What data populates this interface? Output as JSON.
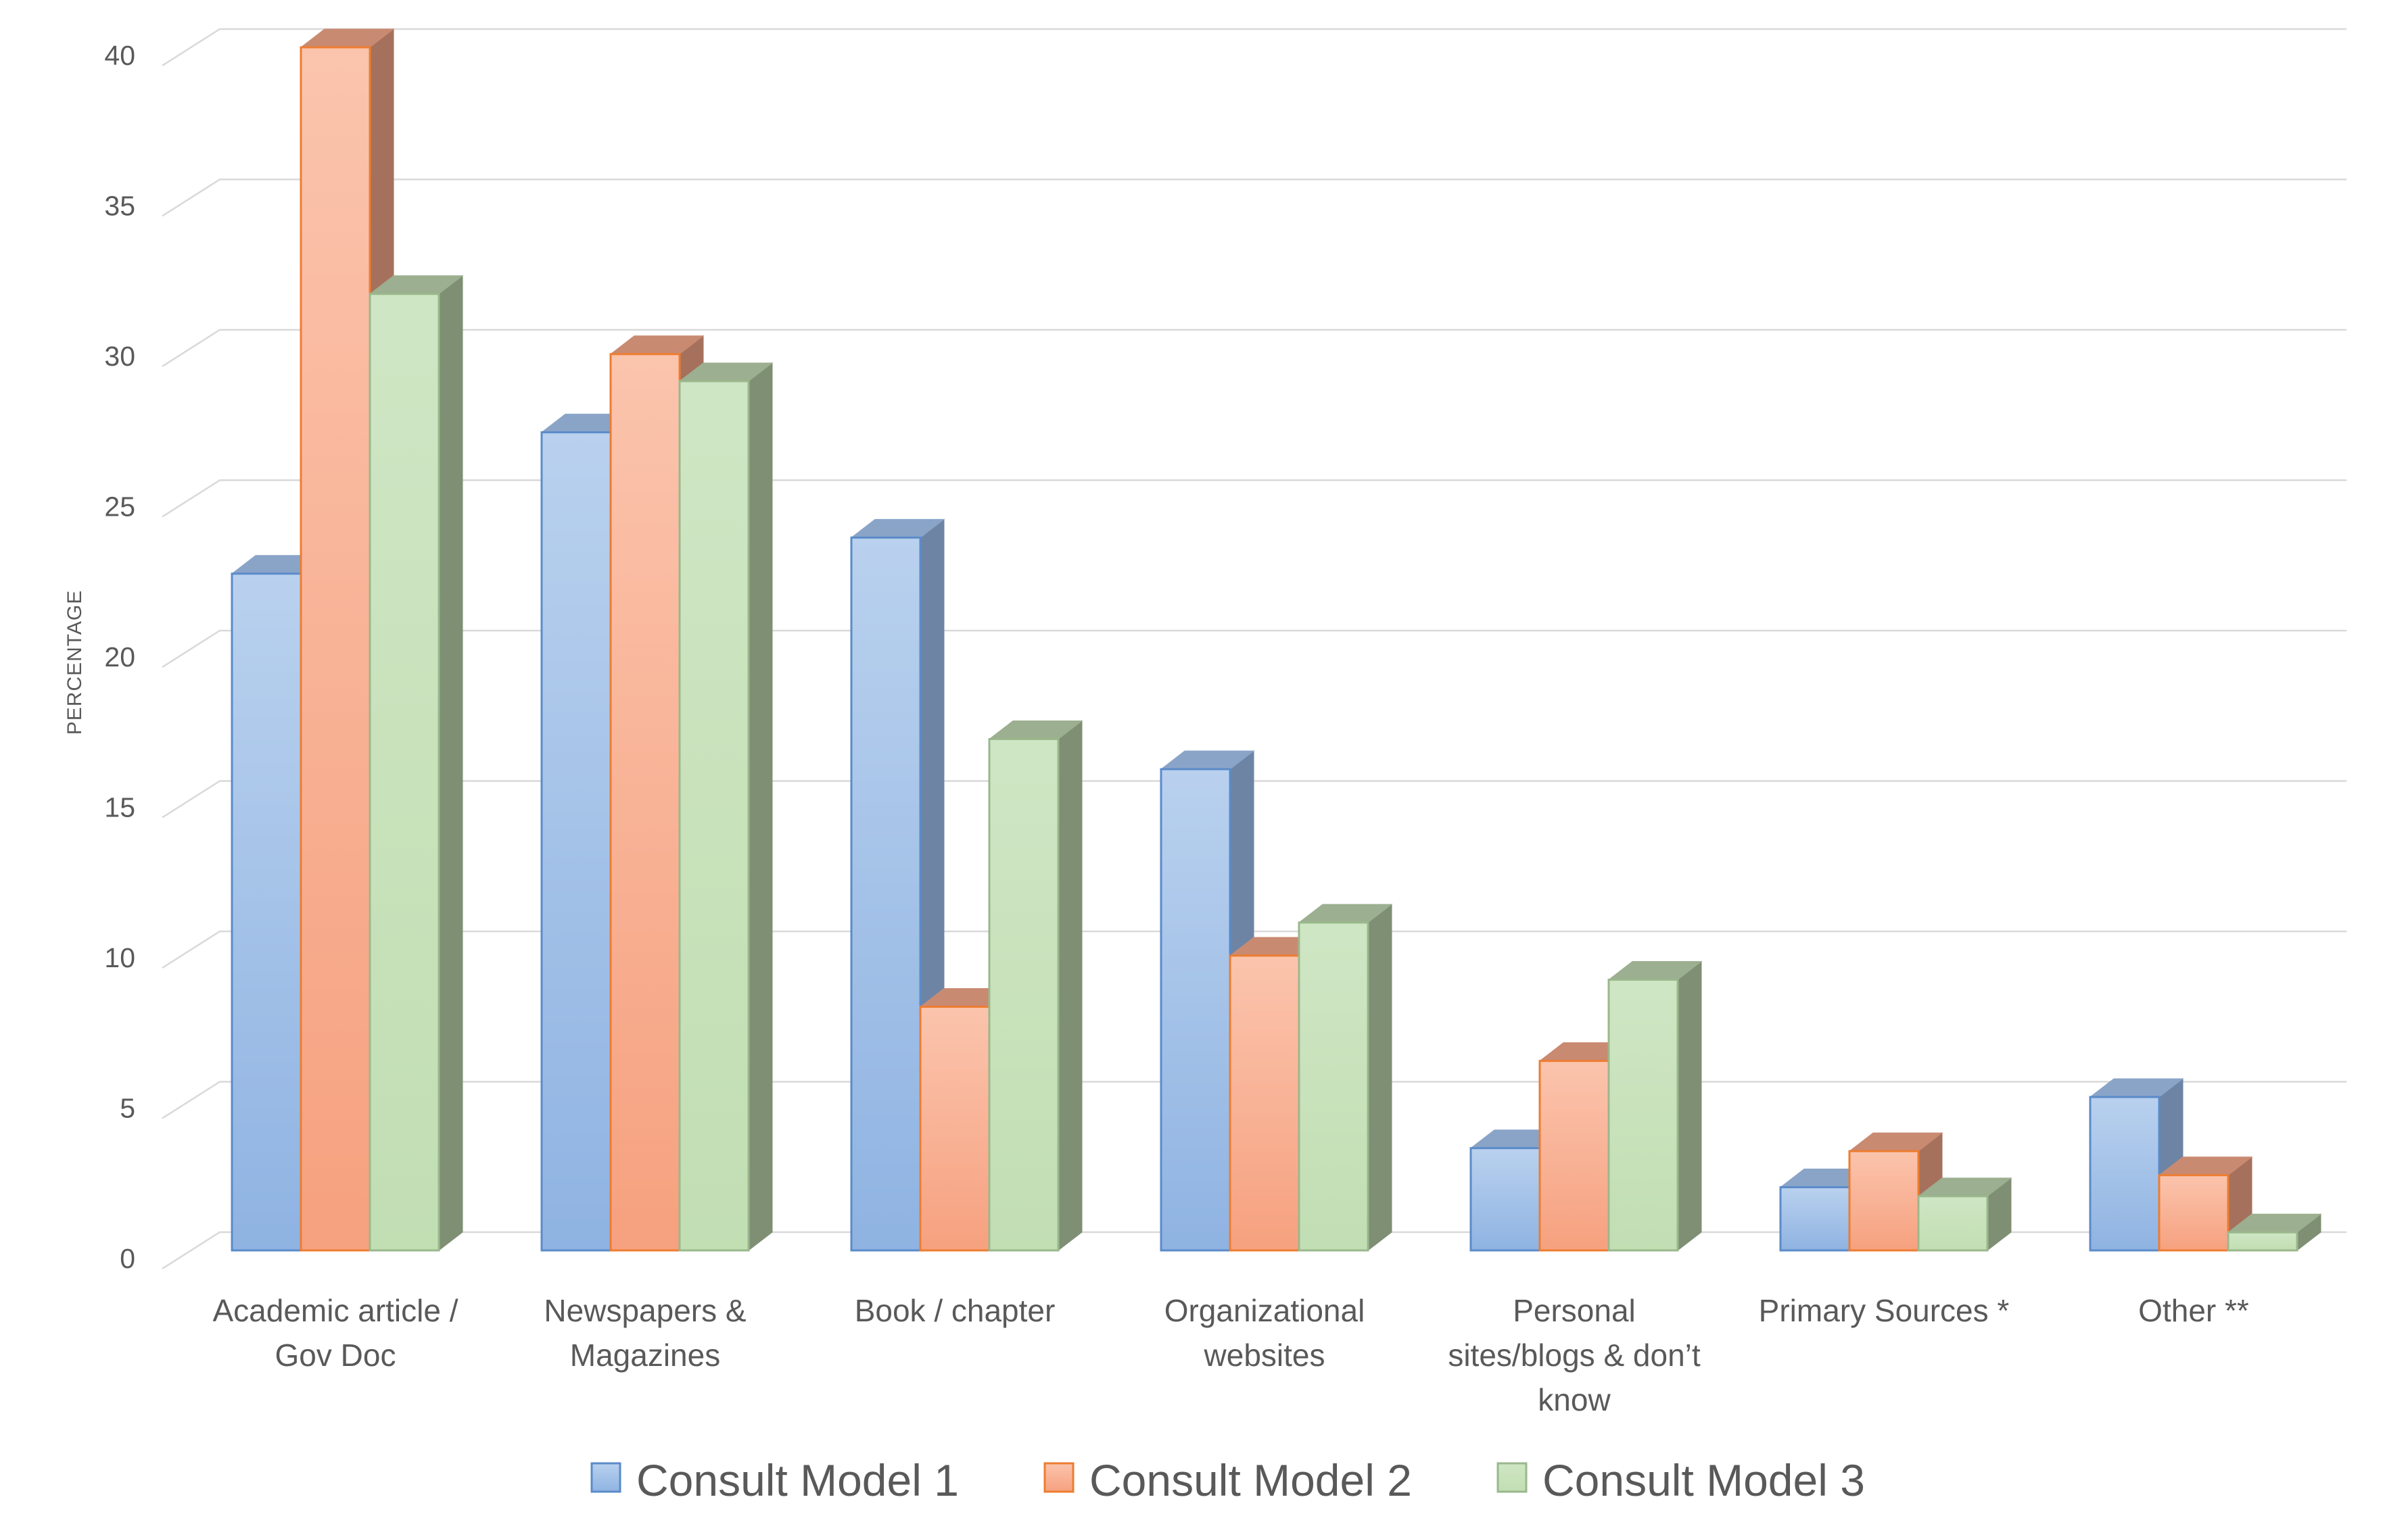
{
  "chart_data": {
    "type": "bar",
    "title": "",
    "xlabel": "",
    "ylabel": "PERCENTAGE",
    "ylim": [
      0,
      40
    ],
    "yticks": [
      0,
      5,
      10,
      15,
      20,
      25,
      30,
      35,
      40
    ],
    "grid": true,
    "style": "3d-clustered-column",
    "legend_position": "bottom",
    "categories": [
      [
        "Academic article /",
        "Gov Doc"
      ],
      [
        "Newspapers &",
        "Magazines"
      ],
      [
        "Book / chapter"
      ],
      [
        "Organizational",
        "websites"
      ],
      [
        "Personal",
        "sites/blogs & don’t",
        "know"
      ],
      [
        "Primary Sources *"
      ],
      [
        "Other **"
      ]
    ],
    "series": [
      {
        "name": "Consult Model 1",
        "color_top": "#b9d1ee",
        "color_bottom": "#8fb3e2",
        "color_outline": "#5b8bc9",
        "color_side": "#6d84a5",
        "color_cap": "#8aa4c8",
        "values": [
          22.5,
          27.2,
          23.7,
          16.0,
          3.4,
          2.1,
          5.1
        ]
      },
      {
        "name": "Consult Model 2",
        "color_top": "#fbc4ad",
        "color_bottom": "#f6a17f",
        "color_outline": "#ed7d31",
        "color_side": "#a5715c",
        "color_cap": "#c98a72",
        "values": [
          40.0,
          29.8,
          8.1,
          9.8,
          6.3,
          3.3,
          2.5
        ]
      },
      {
        "name": "Consult Model 3",
        "color_top": "#cfe6c4",
        "color_bottom": "#c2deb3",
        "color_outline": "#9ab88c",
        "color_side": "#7f8f74",
        "color_cap": "#9caf90",
        "values": [
          31.8,
          28.9,
          17.0,
          10.9,
          9.0,
          1.8,
          0.6
        ]
      }
    ]
  }
}
